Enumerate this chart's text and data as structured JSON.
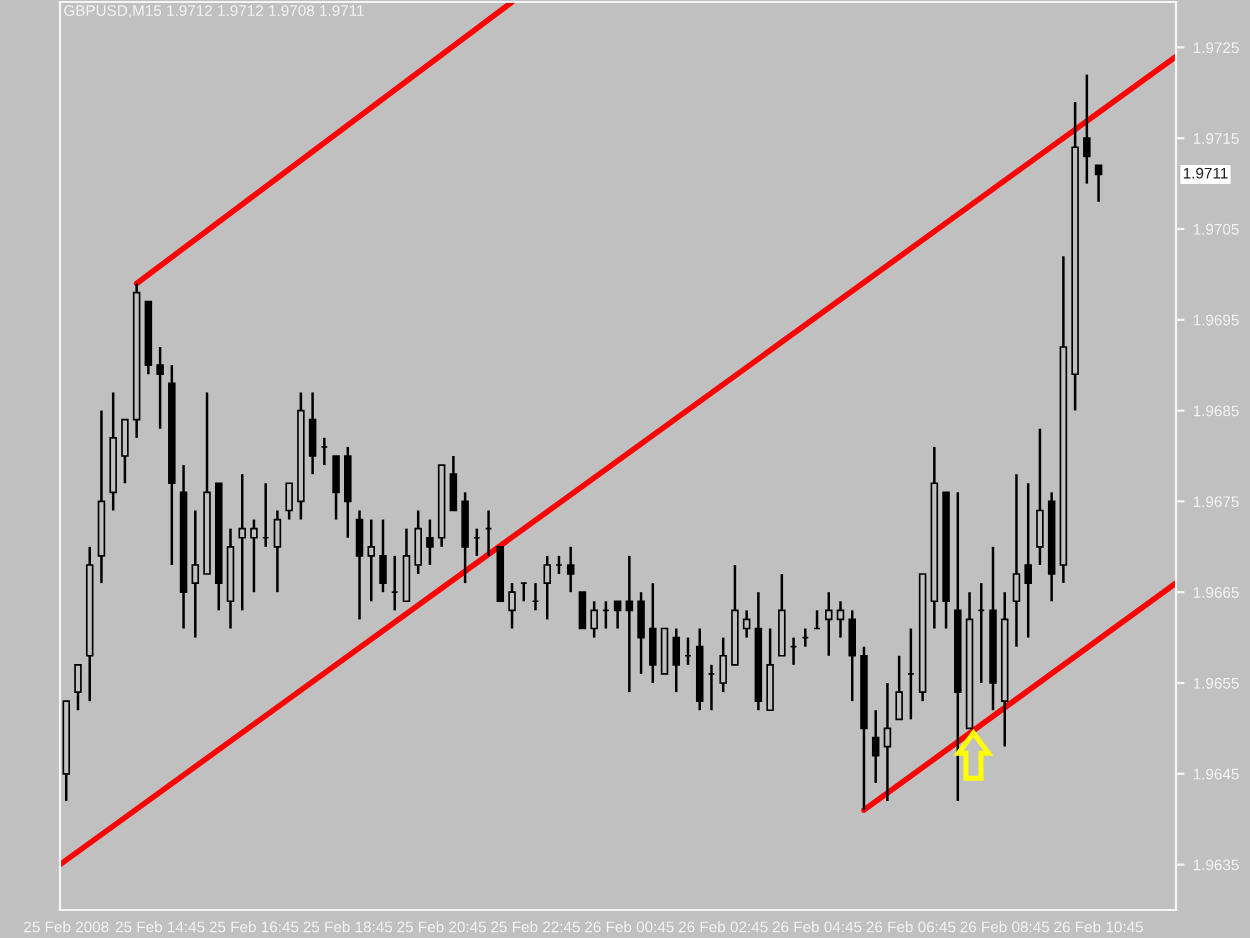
{
  "chart_data": {
    "type": "candlestick",
    "title": "GBPUSD,M15 1.9712 1.9712 1.9708 1.9711",
    "color": "#000000",
    "x": [
      "2008-02-25T12:45",
      "2008-02-25T13:00",
      "2008-02-25T13:15",
      "2008-02-25T13:30",
      "2008-02-25T13:45",
      "2008-02-25T14:00",
      "2008-02-25T14:15",
      "2008-02-25T14:30",
      "2008-02-25T14:45",
      "2008-02-25T15:00",
      "2008-02-25T15:15",
      "2008-02-25T15:30",
      "2008-02-25T15:45",
      "2008-02-25T16:00",
      "2008-02-25T16:15",
      "2008-02-25T16:30",
      "2008-02-25T16:45",
      "2008-02-25T17:00",
      "2008-02-25T17:15",
      "2008-02-25T17:30",
      "2008-02-25T17:45",
      "2008-02-25T18:00",
      "2008-02-25T18:15",
      "2008-02-25T18:30",
      "2008-02-25T18:45",
      "2008-02-25T19:00",
      "2008-02-25T19:15",
      "2008-02-25T19:30",
      "2008-02-25T19:45",
      "2008-02-25T20:00",
      "2008-02-25T20:15",
      "2008-02-25T20:30",
      "2008-02-25T20:45",
      "2008-02-25T21:00",
      "2008-02-25T21:15",
      "2008-02-25T21:30",
      "2008-02-25T21:45",
      "2008-02-25T22:00",
      "2008-02-25T22:15",
      "2008-02-25T22:30",
      "2008-02-25T22:45",
      "2008-02-25T23:00",
      "2008-02-25T23:15",
      "2008-02-25T23:30",
      "2008-02-25T23:45",
      "2008-02-26T00:00",
      "2008-02-26T00:15",
      "2008-02-26T00:30",
      "2008-02-26T00:45",
      "2008-02-26T01:00",
      "2008-02-26T01:15",
      "2008-02-26T01:30",
      "2008-02-26T01:45",
      "2008-02-26T02:00",
      "2008-02-26T02:15",
      "2008-02-26T02:30",
      "2008-02-26T02:45",
      "2008-02-26T03:00",
      "2008-02-26T03:15",
      "2008-02-26T03:30",
      "2008-02-26T03:45",
      "2008-02-26T04:00",
      "2008-02-26T04:15",
      "2008-02-26T04:30",
      "2008-02-26T04:45",
      "2008-02-26T05:00",
      "2008-02-26T05:15",
      "2008-02-26T05:30",
      "2008-02-26T05:45",
      "2008-02-26T06:00",
      "2008-02-26T06:15",
      "2008-02-26T06:30",
      "2008-02-26T06:45",
      "2008-02-26T07:00",
      "2008-02-26T07:15",
      "2008-02-26T07:30",
      "2008-02-26T07:45",
      "2008-02-26T08:00",
      "2008-02-26T08:15",
      "2008-02-26T08:30",
      "2008-02-26T08:45",
      "2008-02-26T09:00",
      "2008-02-26T09:15",
      "2008-02-26T09:30",
      "2008-02-26T09:45",
      "2008-02-26T10:00",
      "2008-02-26T10:15",
      "2008-02-26T10:30",
      "2008-02-26T10:45"
    ],
    "ohlc": [
      [
        1.9645,
        1.9653,
        1.9642,
        1.9653
      ],
      [
        1.9654,
        1.9657,
        1.9652,
        1.9657
      ],
      [
        1.9658,
        1.967,
        1.9653,
        1.9668
      ],
      [
        1.9669,
        1.9685,
        1.9666,
        1.9675
      ],
      [
        1.9676,
        1.9687,
        1.9674,
        1.9682
      ],
      [
        1.968,
        1.9684,
        1.9677,
        1.9684
      ],
      [
        1.9684,
        1.9699,
        1.9682,
        1.9698
      ],
      [
        1.9697,
        1.9697,
        1.9689,
        1.969
      ],
      [
        1.969,
        1.9692,
        1.9683,
        1.9689
      ],
      [
        1.9688,
        1.969,
        1.9668,
        1.9677
      ],
      [
        1.9676,
        1.9679,
        1.9661,
        1.9665
      ],
      [
        1.9666,
        1.9674,
        1.966,
        1.9668
      ],
      [
        1.9667,
        1.9687,
        1.9667,
        1.9676
      ],
      [
        1.9677,
        1.9677,
        1.9663,
        1.9666
      ],
      [
        1.9664,
        1.9672,
        1.9661,
        1.967
      ],
      [
        1.9671,
        1.9678,
        1.9663,
        1.9672
      ],
      [
        1.9671,
        1.9673,
        1.9665,
        1.9672
      ],
      [
        1.9671,
        1.9677,
        1.967,
        1.9671
      ],
      [
        1.967,
        1.9674,
        1.9665,
        1.9673
      ],
      [
        1.9674,
        1.9677,
        1.9673,
        1.9677
      ],
      [
        1.9675,
        1.9687,
        1.9673,
        1.9685
      ],
      [
        1.9684,
        1.9687,
        1.9678,
        1.968
      ],
      [
        1.9681,
        1.9682,
        1.9679,
        1.9681
      ],
      [
        1.968,
        1.968,
        1.9673,
        1.9676
      ],
      [
        1.968,
        1.9681,
        1.9671,
        1.9675
      ],
      [
        1.9673,
        1.9674,
        1.9662,
        1.9669
      ],
      [
        1.9669,
        1.9673,
        1.9664,
        1.967
      ],
      [
        1.9669,
        1.9673,
        1.9665,
        1.9666
      ],
      [
        1.9665,
        1.9669,
        1.9663,
        1.9665
      ],
      [
        1.9664,
        1.9672,
        1.9664,
        1.9669
      ],
      [
        1.9668,
        1.9674,
        1.9667,
        1.9672
      ],
      [
        1.9671,
        1.9673,
        1.9668,
        1.967
      ],
      [
        1.9671,
        1.9679,
        1.967,
        1.9679
      ],
      [
        1.9678,
        1.968,
        1.9674,
        1.9674
      ],
      [
        1.9675,
        1.9676,
        1.9666,
        1.967
      ],
      [
        1.9671,
        1.9672,
        1.9669,
        1.9671
      ],
      [
        1.9672,
        1.9674,
        1.9669,
        1.9672
      ],
      [
        1.967,
        1.967,
        1.9664,
        1.9664
      ],
      [
        1.9663,
        1.9666,
        1.9661,
        1.9665
      ],
      [
        1.9666,
        1.9666,
        1.9664,
        1.9666
      ],
      [
        1.9664,
        1.9666,
        1.9663,
        1.9664
      ],
      [
        1.9666,
        1.9669,
        1.9662,
        1.9668
      ],
      [
        1.9668,
        1.9669,
        1.9667,
        1.9668
      ],
      [
        1.9668,
        1.967,
        1.9665,
        1.9667
      ],
      [
        1.9665,
        1.9665,
        1.9661,
        1.9661
      ],
      [
        1.9661,
        1.9664,
        1.966,
        1.9663
      ],
      [
        1.9663,
        1.9664,
        1.9661,
        1.9663
      ],
      [
        1.9664,
        1.9664,
        1.9661,
        1.9663
      ],
      [
        1.9664,
        1.9669,
        1.9654,
        1.9663
      ],
      [
        1.9664,
        1.9665,
        1.9656,
        1.966
      ],
      [
        1.9661,
        1.9666,
        1.9655,
        1.9657
      ],
      [
        1.9656,
        1.9661,
        1.9656,
        1.9661
      ],
      [
        1.966,
        1.9661,
        1.9654,
        1.9657
      ],
      [
        1.9658,
        1.966,
        1.9657,
        1.9658
      ],
      [
        1.9659,
        1.9661,
        1.9652,
        1.9653
      ],
      [
        1.9656,
        1.9657,
        1.9652,
        1.9656
      ],
      [
        1.9655,
        1.966,
        1.9654,
        1.9658
      ],
      [
        1.9657,
        1.9668,
        1.9657,
        1.9663
      ],
      [
        1.9661,
        1.9663,
        1.966,
        1.9662
      ],
      [
        1.9661,
        1.9665,
        1.9652,
        1.9653
      ],
      [
        1.9652,
        1.9661,
        1.9652,
        1.9657
      ],
      [
        1.9658,
        1.9667,
        1.9658,
        1.9663
      ],
      [
        1.9659,
        1.966,
        1.9657,
        1.9659
      ],
      [
        1.966,
        1.9661,
        1.9659,
        1.966
      ],
      [
        1.9661,
        1.9663,
        1.9661,
        1.9661
      ],
      [
        1.9662,
        1.9665,
        1.9658,
        1.9663
      ],
      [
        1.9662,
        1.9664,
        1.966,
        1.9663
      ],
      [
        1.9662,
        1.9663,
        1.9653,
        1.9658
      ],
      [
        1.9658,
        1.9659,
        1.9641,
        1.965
      ],
      [
        1.9649,
        1.9652,
        1.9644,
        1.9647
      ],
      [
        1.9648,
        1.9655,
        1.9642,
        1.965
      ],
      [
        1.9651,
        1.9658,
        1.9651,
        1.9654
      ],
      [
        1.9656,
        1.9661,
        1.9651,
        1.9656
      ],
      [
        1.9654,
        1.9667,
        1.9653,
        1.9667
      ],
      [
        1.9664,
        1.9681,
        1.9661,
        1.9677
      ],
      [
        1.9676,
        1.9676,
        1.9661,
        1.9664
      ],
      [
        1.9663,
        1.9676,
        1.9642,
        1.9654
      ],
      [
        1.965,
        1.9665,
        1.965,
        1.9662
      ],
      [
        1.9663,
        1.9666,
        1.9655,
        1.9663
      ],
      [
        1.9663,
        1.967,
        1.9652,
        1.9655
      ],
      [
        1.9653,
        1.9665,
        1.9648,
        1.9662
      ],
      [
        1.9664,
        1.9678,
        1.9659,
        1.9667
      ],
      [
        1.9668,
        1.9677,
        1.966,
        1.9666
      ],
      [
        1.967,
        1.9683,
        1.9668,
        1.9674
      ],
      [
        1.9675,
        1.9676,
        1.9664,
        1.9667
      ],
      [
        1.9668,
        1.9702,
        1.9666,
        1.9692
      ],
      [
        1.9689,
        1.9719,
        1.9685,
        1.9714
      ],
      [
        1.9715,
        1.9722,
        1.971,
        1.9713
      ],
      [
        1.9712,
        1.9712,
        1.9708,
        1.9711
      ]
    ],
    "series": [
      {
        "type": "line",
        "color": "#ff0000",
        "x": [
          "2008-02-25T14:15",
          "2008-02-25T22:15"
        ],
        "values": [
          1.9699,
          1.973
        ]
      },
      {
        "type": "line",
        "color": "#ff0000",
        "x": [
          "2008-02-25T12:37",
          "2008-02-26T12:24"
        ],
        "values": [
          1.9635,
          1.9724
        ]
      },
      {
        "type": "line",
        "color": "#ff0000",
        "x": [
          "2008-02-26T05:45",
          "2008-02-26T12:24"
        ],
        "values": [
          1.9641,
          1.9666
        ]
      }
    ],
    "xlim": [
      "2008-02-25T12:37",
      "2008-02-26T12:24"
    ],
    "xticks": [
      {
        "value": "2008-02-25T12:45",
        "label": "25 Feb 2008"
      },
      {
        "value": "2008-02-25T14:45",
        "label": "25 Feb 14:45"
      },
      {
        "value": "2008-02-25T16:45",
        "label": "25 Feb 16:45"
      },
      {
        "value": "2008-02-25T18:45",
        "label": "25 Feb 18:45"
      },
      {
        "value": "2008-02-25T20:45",
        "label": "25 Feb 20:45"
      },
      {
        "value": "2008-02-25T22:45",
        "label": "25 Feb 22:45"
      },
      {
        "value": "2008-02-26T00:45",
        "label": "26 Feb 00:45"
      },
      {
        "value": "2008-02-26T02:45",
        "label": "26 Feb 02:45"
      },
      {
        "value": "2008-02-26T04:45",
        "label": "26 Feb 04:45"
      },
      {
        "value": "2008-02-26T06:45",
        "label": "26 Feb 06:45"
      },
      {
        "value": "2008-02-26T08:45",
        "label": "26 Feb 08:45"
      },
      {
        "value": "2008-02-26T10:45",
        "label": "26 Feb 10:45"
      }
    ],
    "ylim": [
      1.963,
      1.973
    ],
    "yticks": [
      1.9635,
      1.9645,
      1.9655,
      1.9665,
      1.9675,
      1.9685,
      1.9695,
      1.9705,
      1.9715,
      1.9725
    ],
    "annotations": [
      "1.9711"
    ]
  }
}
